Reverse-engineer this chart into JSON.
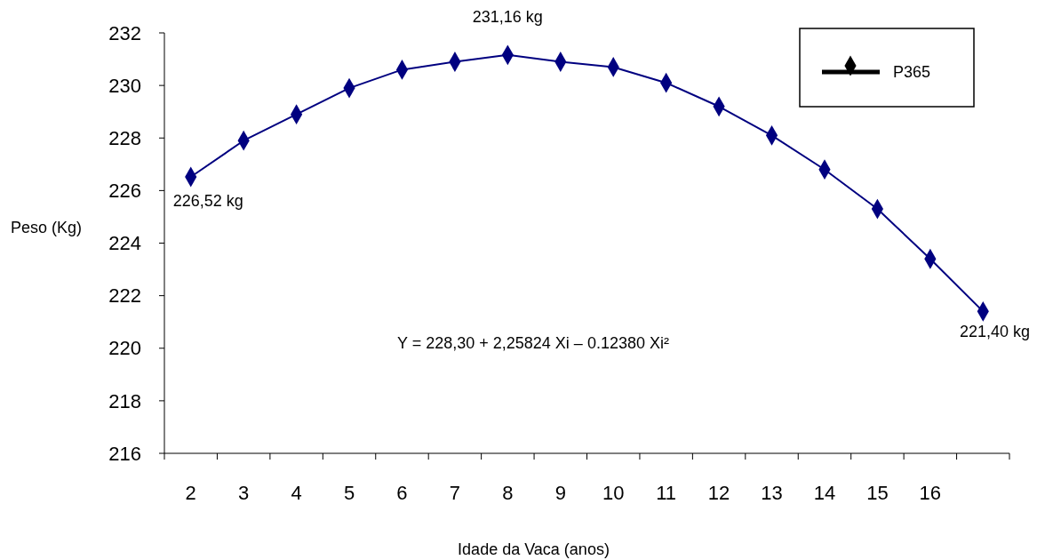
{
  "chart_data": {
    "type": "line",
    "xlabel": "Idade da Vaca (anos)",
    "ylabel": "Peso (Kg)",
    "categories": [
      "2",
      "3",
      "4",
      "5",
      "6",
      "7",
      "8",
      "9",
      "10",
      "11",
      "12",
      "13",
      "14",
      "15",
      "16",
      null
    ],
    "series": [
      {
        "name": "P365",
        "color": "#000080",
        "values": [
          226.52,
          227.9,
          228.9,
          229.9,
          230.6,
          230.9,
          231.16,
          230.9,
          230.7,
          230.1,
          229.2,
          228.1,
          226.8,
          225.3,
          223.4,
          221.4
        ]
      }
    ],
    "ylim": [
      216,
      232
    ],
    "yticks": [
      216,
      218,
      220,
      222,
      224,
      226,
      228,
      230,
      232
    ],
    "marker": "diamond",
    "line_style": "solid",
    "legend": "top right",
    "grid": false,
    "annotations": [
      {
        "text": "231,16 kg",
        "x": "8",
        "y": 231.16
      },
      {
        "text": "226,52 kg",
        "x": "2",
        "y": 226.52
      },
      "221,40 kg",
      "Y = 228,30 + 2,25824 Xi –  0.12380 Xi²"
    ]
  }
}
